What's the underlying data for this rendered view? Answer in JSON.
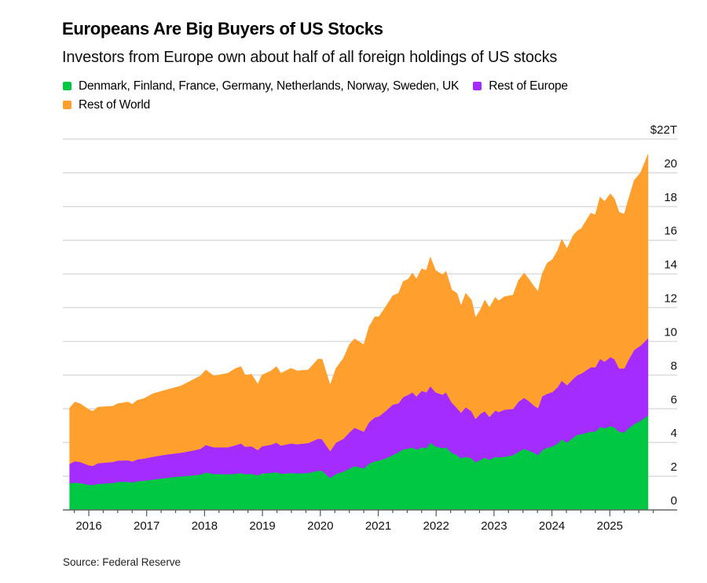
{
  "header": {
    "title": "Europeans Are Big Buyers of US Stocks",
    "subtitle": "Investors from Europe own about half of all foreign holdings of US stocks"
  },
  "legend": [
    {
      "label": "Denmark, Finland, France, Germany, Netherlands, Norway, Sweden, UK",
      "color": "#00c843"
    },
    {
      "label": "Rest of Europe",
      "color": "#a52cff"
    },
    {
      "label": "Rest of World",
      "color": "#ff9f2d"
    }
  ],
  "footer": {
    "source": "Source: Federal Reserve"
  },
  "chart_data": {
    "type": "area",
    "stacked": true,
    "title": "Europeans Are Big Buyers of US Stocks",
    "subtitle": "Investors from Europe own about half of all foreign holdings of US stocks",
    "xlabel": "",
    "ylabel": "",
    "y_unit": "trillions of US dollars",
    "ylim": [
      0,
      22
    ],
    "y_ticks": [
      0,
      2,
      4,
      6,
      8,
      10,
      12,
      14,
      16,
      18,
      20,
      22
    ],
    "y_tick_labels": [
      "0",
      "2",
      "4",
      "6",
      "8",
      "10",
      "12",
      "14",
      "16",
      "18",
      "20",
      "$22T"
    ],
    "x_range": [
      2015.5,
      2026.0
    ],
    "x_ticks": [
      2016,
      2017,
      2018,
      2019,
      2020,
      2021,
      2022,
      2023,
      2024,
      2025
    ],
    "x_tick_labels": [
      "2016",
      "2017",
      "2018",
      "2019",
      "2020",
      "2021",
      "2022",
      "2023",
      "2024",
      "2025"
    ],
    "x_minor_tick_step": 0.25,
    "grid": true,
    "legend_position": "top",
    "x": [
      2015.67,
      2015.76,
      2015.85,
      2016.0,
      2016.07,
      2016.16,
      2016.41,
      2016.5,
      2016.68,
      2016.75,
      2016.84,
      2016.95,
      2017.11,
      2017.32,
      2017.59,
      2017.79,
      2017.93,
      2018.02,
      2018.16,
      2018.4,
      2018.54,
      2018.63,
      2018.7,
      2018.81,
      2018.92,
      2018.99,
      2019.15,
      2019.24,
      2019.32,
      2019.49,
      2019.6,
      2019.79,
      2019.96,
      2020.03,
      2020.17,
      2020.27,
      2020.4,
      2020.5,
      2020.59,
      2020.75,
      2020.84,
      2020.94,
      2021.01,
      2021.12,
      2021.25,
      2021.35,
      2021.43,
      2021.52,
      2021.59,
      2021.66,
      2021.75,
      2021.83,
      2021.9,
      2021.99,
      2022.11,
      2022.17,
      2022.27,
      2022.36,
      2022.43,
      2022.51,
      2022.61,
      2022.68,
      2022.77,
      2022.84,
      2022.92,
      2023.02,
      2023.08,
      2023.18,
      2023.33,
      2023.42,
      2023.52,
      2023.6,
      2023.69,
      2023.76,
      2023.83,
      2023.92,
      2024.01,
      2024.1,
      2024.17,
      2024.26,
      2024.37,
      2024.44,
      2024.51,
      2024.67,
      2024.75,
      2024.83,
      2024.91,
      2025.01,
      2025.08,
      2025.16,
      2025.25,
      2025.32,
      2025.42,
      2025.53,
      2025.59,
      2025.66
    ],
    "series": [
      {
        "name": "Denmark, Finland, France, Germany, Netherlands, Norway, Sweden, UK",
        "color": "#00c843",
        "values": [
          1.58,
          1.63,
          1.6,
          1.5,
          1.48,
          1.55,
          1.6,
          1.67,
          1.68,
          1.63,
          1.7,
          1.74,
          1.81,
          1.9,
          2.0,
          2.05,
          2.1,
          2.23,
          2.14,
          2.12,
          2.15,
          2.2,
          2.12,
          2.15,
          2.05,
          2.17,
          2.2,
          2.25,
          2.15,
          2.2,
          2.17,
          2.2,
          2.33,
          2.33,
          1.9,
          2.14,
          2.28,
          2.45,
          2.6,
          2.47,
          2.74,
          2.9,
          2.93,
          3.05,
          3.26,
          3.44,
          3.6,
          3.65,
          3.72,
          3.58,
          3.72,
          3.67,
          4.0,
          3.77,
          3.67,
          3.72,
          3.4,
          3.26,
          3.07,
          3.16,
          3.07,
          2.84,
          2.98,
          3.12,
          2.98,
          3.16,
          3.12,
          3.16,
          3.26,
          3.45,
          3.63,
          3.53,
          3.4,
          3.26,
          3.55,
          3.7,
          3.77,
          3.95,
          4.2,
          4.0,
          4.3,
          4.47,
          4.5,
          4.65,
          4.65,
          4.93,
          4.85,
          4.98,
          4.9,
          4.65,
          4.6,
          4.85,
          5.1,
          5.3,
          5.45,
          5.6
        ]
      },
      {
        "name": "Rest of Europe",
        "color": "#a52cff",
        "values": [
          1.16,
          1.27,
          1.25,
          1.15,
          1.14,
          1.23,
          1.25,
          1.26,
          1.27,
          1.25,
          1.3,
          1.31,
          1.35,
          1.38,
          1.4,
          1.47,
          1.53,
          1.63,
          1.58,
          1.6,
          1.7,
          1.75,
          1.63,
          1.63,
          1.5,
          1.61,
          1.68,
          1.75,
          1.67,
          1.75,
          1.73,
          1.77,
          1.9,
          1.87,
          1.6,
          1.86,
          1.95,
          2.15,
          2.28,
          2.18,
          2.46,
          2.6,
          2.62,
          2.8,
          2.99,
          2.89,
          3.1,
          3.19,
          3.26,
          3.16,
          3.35,
          3.31,
          3.35,
          3.21,
          3.17,
          3.26,
          2.97,
          2.79,
          2.7,
          2.94,
          2.79,
          2.56,
          2.74,
          2.74,
          2.55,
          2.74,
          2.69,
          2.79,
          2.74,
          2.97,
          3.02,
          2.94,
          2.79,
          2.79,
          3.19,
          3.2,
          3.23,
          3.35,
          3.47,
          3.4,
          3.5,
          3.53,
          3.6,
          3.82,
          3.82,
          4.04,
          3.95,
          4.09,
          4.05,
          3.75,
          3.8,
          4.05,
          4.4,
          4.45,
          4.5,
          4.6
        ]
      },
      {
        "name": "Rest of World",
        "color": "#ff9f2d",
        "values": [
          3.31,
          3.5,
          3.45,
          3.3,
          3.23,
          3.32,
          3.3,
          3.37,
          3.45,
          3.39,
          3.5,
          3.55,
          3.74,
          3.82,
          3.95,
          4.18,
          4.32,
          4.44,
          4.23,
          4.38,
          4.55,
          4.55,
          4.25,
          4.27,
          3.9,
          4.22,
          4.37,
          4.5,
          4.28,
          4.45,
          4.35,
          4.33,
          4.72,
          4.75,
          3.9,
          4.4,
          4.77,
          5.2,
          5.27,
          5.15,
          5.65,
          5.95,
          5.9,
          6.15,
          6.45,
          6.52,
          6.85,
          6.86,
          7.07,
          6.96,
          7.23,
          7.22,
          7.65,
          7.22,
          7.11,
          7.17,
          6.68,
          6.8,
          6.33,
          6.75,
          6.59,
          6.0,
          6.18,
          6.59,
          6.47,
          6.7,
          6.59,
          6.7,
          6.75,
          7.18,
          7.4,
          7.23,
          7.06,
          6.9,
          7.26,
          7.75,
          7.85,
          8.1,
          8.38,
          8.1,
          8.5,
          8.55,
          8.6,
          9.13,
          9.03,
          9.58,
          9.5,
          9.68,
          9.5,
          9.25,
          9.15,
          9.5,
          10.05,
          10.25,
          10.55,
          10.9
        ]
      }
    ]
  }
}
